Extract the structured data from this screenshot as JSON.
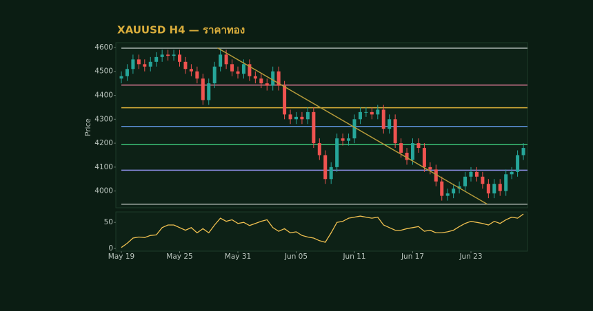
{
  "chart_data": {
    "type": "candlestick",
    "title": "XAUUSD H4 — ราคาทอง",
    "y_label": "Price",
    "categories": [
      "May 19",
      null,
      null,
      null,
      null,
      null,
      null,
      null,
      null,
      null,
      "May 25",
      null,
      null,
      null,
      null,
      null,
      null,
      null,
      null,
      null,
      "May 31",
      null,
      null,
      null,
      null,
      null,
      null,
      null,
      null,
      null,
      "Jun 05",
      null,
      null,
      null,
      null,
      null,
      null,
      null,
      null,
      null,
      "Jun 11",
      null,
      null,
      null,
      null,
      null,
      null,
      null,
      null,
      null,
      "Jun 17",
      null,
      null,
      null,
      null,
      null,
      null,
      null,
      null,
      null,
      "Jun 23",
      null,
      null,
      null,
      null,
      null,
      null,
      null,
      null,
      null
    ],
    "open": [
      4470,
      4480,
      4510,
      4550,
      4530,
      4520,
      4540,
      4560,
      4570,
      4565,
      4570,
      4540,
      4510,
      4500,
      4470,
      4380,
      4450,
      4520,
      4570,
      4530,
      4500,
      4490,
      4530,
      4480,
      4470,
      4450,
      4440,
      4500,
      4440,
      4320,
      4300,
      4310,
      4300,
      4330,
      4200,
      4150,
      4050,
      4100,
      4220,
      4210,
      4220,
      4300,
      4330,
      4330,
      4320,
      4340,
      4260,
      4300,
      4200,
      4160,
      4130,
      4200,
      4180,
      4100,
      4090,
      4040,
      3980,
      3990,
      4010,
      4020,
      4060,
      4080,
      4060,
      4030,
      3990,
      4030,
      4000,
      4070,
      4080,
      4150
    ],
    "high": [
      4500,
      4530,
      4570,
      4570,
      4550,
      4560,
      4580,
      4590,
      4590,
      4590,
      4590,
      4560,
      4530,
      4520,
      4490,
      4470,
      4540,
      4595,
      4590,
      4550,
      4520,
      4550,
      4550,
      4500,
      4490,
      4470,
      4520,
      4520,
      4460,
      4340,
      4330,
      4330,
      4350,
      4350,
      4220,
      4170,
      4120,
      4240,
      4240,
      4240,
      4320,
      4350,
      4350,
      4350,
      4360,
      4360,
      4320,
      4320,
      4220,
      4180,
      4220,
      4220,
      4200,
      4120,
      4110,
      4060,
      4010,
      4030,
      4040,
      4080,
      4100,
      4100,
      4080,
      4050,
      4050,
      4050,
      4090,
      4100,
      4170,
      4200
    ],
    "low": [
      4450,
      4460,
      4490,
      4510,
      4500,
      4500,
      4520,
      4540,
      4545,
      4545,
      4520,
      4490,
      4480,
      4450,
      4360,
      4360,
      4430,
      4500,
      4510,
      4480,
      4470,
      4470,
      4460,
      4450,
      4430,
      4420,
      4420,
      4420,
      4300,
      4280,
      4280,
      4280,
      4280,
      4180,
      4130,
      4030,
      4030,
      4080,
      4190,
      4190,
      4200,
      4280,
      4310,
      4300,
      4300,
      4240,
      4240,
      4180,
      4140,
      4110,
      4110,
      4160,
      4080,
      4070,
      4020,
      3960,
      3960,
      3970,
      3990,
      4000,
      4040,
      4040,
      4010,
      3970,
      3970,
      3980,
      3980,
      4050,
      4060,
      4130
    ],
    "close": [
      4480,
      4510,
      4550,
      4530,
      4520,
      4540,
      4560,
      4570,
      4565,
      4570,
      4540,
      4510,
      4500,
      4470,
      4380,
      4450,
      4520,
      4570,
      4530,
      4500,
      4490,
      4530,
      4480,
      4470,
      4450,
      4440,
      4500,
      4440,
      4320,
      4300,
      4310,
      4300,
      4330,
      4200,
      4150,
      4050,
      4100,
      4220,
      4210,
      4220,
      4300,
      4330,
      4330,
      4320,
      4340,
      4260,
      4300,
      4200,
      4160,
      4130,
      4200,
      4180,
      4100,
      4090,
      4040,
      3980,
      3990,
      4010,
      4020,
      4060,
      4080,
      4060,
      4030,
      3990,
      4030,
      4000,
      4070,
      4080,
      4150,
      4180
    ],
    "up_color": "#26a69a",
    "down_color": "#ef5350",
    "ylim": [
      3930,
      4620
    ],
    "yticks": [
      4000,
      4100,
      4200,
      4300,
      4400,
      4500,
      4600
    ],
    "levels": [
      {
        "value": 4597,
        "color": "#aab4af"
      },
      {
        "value": 4443,
        "color": "#e07a98"
      },
      {
        "value": 4348,
        "color": "#e0b43a"
      },
      {
        "value": 4270,
        "color": "#5b8fd6"
      },
      {
        "value": 4195,
        "color": "#3cc47a"
      },
      {
        "value": 4087,
        "color": "#8d8fe6"
      },
      {
        "value": 3945,
        "color": "#aab4af"
      }
    ],
    "trendline": {
      "x": [
        16.5,
        62.8
      ],
      "y": [
        4598,
        3945
      ],
      "color": "#b59a3a"
    },
    "rsi": {
      "color": "#f0c050",
      "values": [
        2,
        10,
        20,
        22,
        21,
        25,
        26,
        40,
        45,
        45,
        40,
        35,
        40,
        30,
        38,
        30,
        45,
        58,
        52,
        55,
        48,
        50,
        44,
        48,
        52,
        55,
        40,
        33,
        38,
        30,
        32,
        25,
        22,
        20,
        15,
        12,
        30,
        50,
        52,
        58,
        60,
        62,
        60,
        58,
        60,
        45,
        40,
        35,
        35,
        38,
        40,
        42,
        33,
        35,
        30,
        30,
        32,
        35,
        42,
        48,
        52,
        50,
        48,
        45,
        52,
        48,
        55,
        60,
        58,
        66
      ],
      "ylim": [
        -5,
        70
      ],
      "yticks": [
        0,
        50
      ]
    }
  }
}
